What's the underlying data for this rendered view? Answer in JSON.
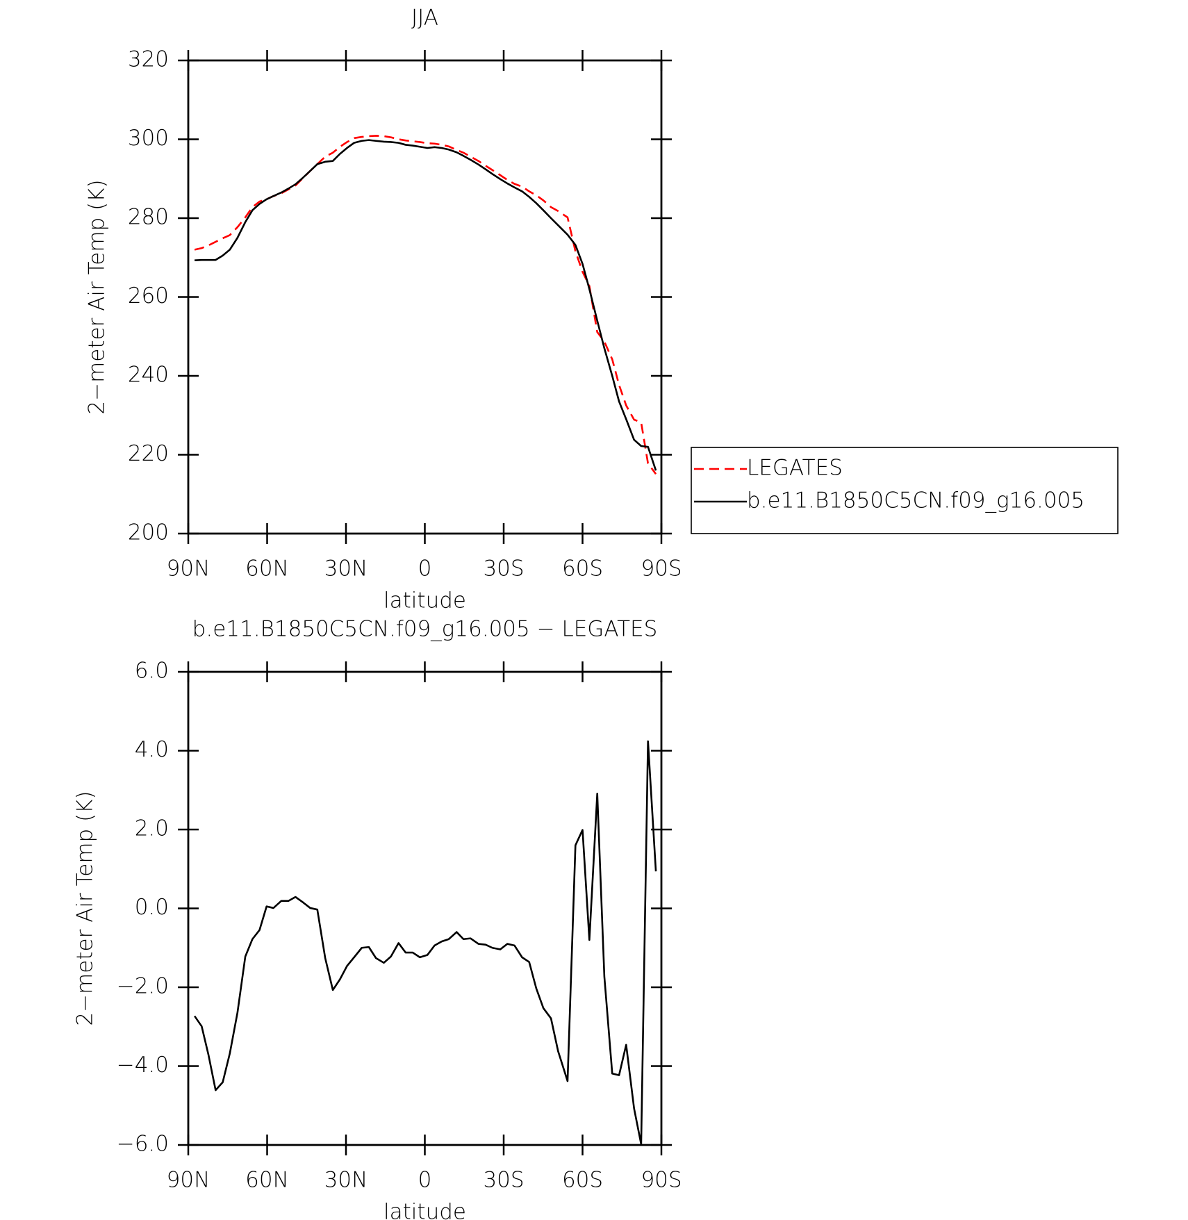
{
  "chart_data": [
    {
      "type": "line",
      "title": "JJA",
      "xlabel": "latitude",
      "ylabel": "2−meter Air Temp (K)",
      "x": [
        87.6,
        84.9,
        82.3,
        79.6,
        76.9,
        74.2,
        71.3,
        68.3,
        65.6,
        62.9,
        60.2,
        57.6,
        54.6,
        51.9,
        49.2,
        46.3,
        43.6,
        40.9,
        37.9,
        35.0,
        32.3,
        29.6,
        26.9,
        24.0,
        21.3,
        18.6,
        15.6,
        12.9,
        10.0,
        7.3,
        4.6,
        1.9,
        -1.0,
        -3.7,
        -6.4,
        -9.1,
        -12.1,
        -14.7,
        -17.4,
        -20.4,
        -23.1,
        -25.7,
        -28.7,
        -31.4,
        -34.1,
        -37.0,
        -39.7,
        -42.4,
        -45.1,
        -48.0,
        -50.7,
        -54.3,
        -57.3,
        -60.0,
        -62.6,
        -65.6,
        -68.3,
        -71.3,
        -73.9,
        -76.6,
        -79.6,
        -82.3,
        -84.9,
        -87.9
      ],
      "series": [
        {
          "name": "LEGATES",
          "color": "#ff0000",
          "linestyle": "dashed",
          "values": [
            272.0,
            272.4,
            273.1,
            274.0,
            274.9,
            275.7,
            277.7,
            280.2,
            282.8,
            284.2,
            284.8,
            285.6,
            286.3,
            287.3,
            288.3,
            290.2,
            292.0,
            293.7,
            295.6,
            296.6,
            298.1,
            299.3,
            300.3,
            300.6,
            300.8,
            300.9,
            300.8,
            300.5,
            300.0,
            299.7,
            299.5,
            299.3,
            299.0,
            298.9,
            298.6,
            298.2,
            297.3,
            296.6,
            295.6,
            294.5,
            293.3,
            292.2,
            290.9,
            289.7,
            288.7,
            288.0,
            286.8,
            285.8,
            284.5,
            282.8,
            281.8,
            280.2,
            271.6,
            266.4,
            262.8,
            251.1,
            248.7,
            244.2,
            237.7,
            232.5,
            228.9,
            228.2,
            217.8,
            215.1
          ]
        },
        {
          "name": "b.e11.B1850C5CN.f09_g16.005",
          "color": "#000000",
          "linestyle": "solid",
          "values": [
            269.3,
            269.4,
            269.4,
            269.4,
            270.5,
            272.0,
            275.0,
            279.0,
            282.0,
            283.6,
            284.8,
            285.6,
            286.5,
            287.5,
            288.6,
            290.3,
            292.0,
            293.7,
            294.3,
            294.5,
            296.3,
            297.8,
            299.1,
            299.6,
            299.8,
            299.6,
            299.4,
            299.3,
            299.1,
            298.6,
            298.4,
            298.1,
            297.8,
            298.0,
            297.8,
            297.4,
            296.7,
            295.8,
            294.8,
            293.6,
            292.4,
            291.2,
            289.9,
            288.8,
            287.8,
            286.8,
            285.4,
            283.8,
            282.0,
            280.0,
            278.2,
            275.8,
            273.2,
            268.4,
            262.0,
            254.0,
            247.0,
            240.0,
            233.5,
            229.0,
            223.8,
            222.2,
            222.0,
            216.0
          ]
        }
      ],
      "xlim": [
        90,
        -90
      ],
      "xticks": [
        {
          "value": 90,
          "label": "90N"
        },
        {
          "value": 60,
          "label": "60N"
        },
        {
          "value": 30,
          "label": "30N"
        },
        0,
        {
          "value": -30,
          "label": "30S"
        },
        {
          "value": -60,
          "label": "60S"
        },
        {
          "value": -90,
          "label": "90S"
        }
      ],
      "ylim": [
        200,
        320
      ],
      "yticks": [
        200,
        220,
        240,
        260,
        280,
        300,
        320
      ],
      "legend": "right"
    },
    {
      "type": "line",
      "title": "b.e11.B1850C5CN.f09_g16.005 − LEGATES",
      "xlabel": "latitude",
      "ylabel": "2−meter Air Temp (K)",
      "x": [
        87.6,
        84.9,
        82.3,
        79.6,
        76.9,
        74.2,
        71.3,
        68.3,
        65.6,
        62.9,
        60.2,
        57.6,
        54.6,
        51.9,
        49.2,
        46.3,
        43.6,
        40.9,
        37.9,
        35.0,
        32.3,
        29.6,
        26.9,
        24.0,
        21.3,
        18.6,
        15.6,
        12.9,
        10.0,
        7.3,
        4.6,
        1.9,
        -1.0,
        -3.7,
        -6.4,
        -9.1,
        -12.1,
        -14.7,
        -17.4,
        -20.4,
        -23.1,
        -25.7,
        -28.7,
        -31.4,
        -34.1,
        -37.0,
        -39.7,
        -42.4,
        -45.1,
        -48.0,
        -50.7,
        -54.3,
        -57.3,
        -60.0,
        -62.6,
        -65.6,
        -68.3,
        -71.3,
        -73.9,
        -76.6,
        -79.6,
        -82.3,
        -84.9,
        -87.9
      ],
      "values": [
        -2.73,
        -2.99,
        -3.72,
        -4.61,
        -4.41,
        -3.68,
        -2.65,
        -1.22,
        -0.78,
        -0.55,
        0.05,
        0.01,
        0.19,
        0.19,
        0.29,
        0.15,
        0.01,
        -0.03,
        -1.26,
        -2.07,
        -1.8,
        -1.46,
        -1.24,
        -1.0,
        -0.98,
        -1.26,
        -1.38,
        -1.22,
        -0.88,
        -1.12,
        -1.12,
        -1.24,
        -1.18,
        -0.94,
        -0.84,
        -0.78,
        -0.6,
        -0.78,
        -0.76,
        -0.9,
        -0.92,
        -1.0,
        -1.04,
        -0.9,
        -0.94,
        -1.24,
        -1.36,
        -2.03,
        -2.53,
        -2.79,
        -3.62,
        -4.38,
        1.6,
        1.99,
        -0.8,
        2.91,
        -1.73,
        -4.19,
        -4.23,
        -3.46,
        -5.07,
        -5.98,
        4.24,
        0.94
      ],
      "color": "#000000",
      "xlim": [
        90,
        -90
      ],
      "xticks": [
        {
          "value": 90,
          "label": "90N"
        },
        {
          "value": 60,
          "label": "60N"
        },
        {
          "value": 30,
          "label": "30N"
        },
        0,
        {
          "value": -30,
          "label": "30S"
        },
        {
          "value": -60,
          "label": "60S"
        },
        {
          "value": -90,
          "label": "90S"
        }
      ],
      "ylim": [
        -6,
        6
      ],
      "yticks": [
        {
          "value": -6,
          "label": "−6.0"
        },
        {
          "value": -4,
          "label": "−4.0"
        },
        {
          "value": -2,
          "label": "−2.0"
        },
        {
          "value": 0,
          "label": "0.0"
        },
        {
          "value": 2,
          "label": "2.0"
        },
        {
          "value": 4,
          "label": "4.0"
        },
        {
          "value": 6,
          "label": "6.0"
        }
      ]
    }
  ]
}
